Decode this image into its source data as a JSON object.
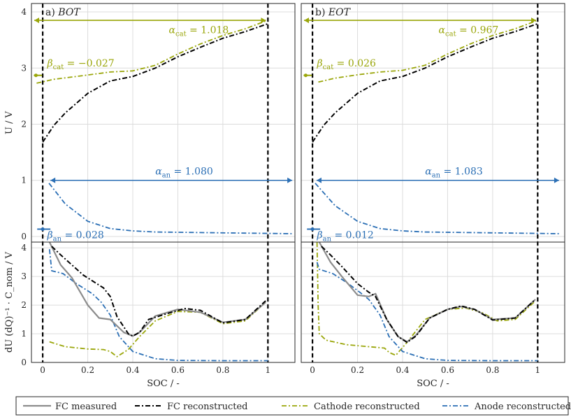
{
  "chart_data": {
    "type": "line",
    "colors": {
      "measured": "#8c8c8c",
      "fc": "#000000",
      "cathode": "#9aa60a",
      "anode": "#2b6fb5",
      "arrow_cat": "#9aa60a",
      "arrow_an": "#2b6fb5"
    },
    "x_axis": {
      "label": "SOC / -",
      "range": [
        -0.05,
        1.12
      ],
      "ticks": [
        "0",
        "0.2",
        "0.4",
        "0.6",
        "0.8",
        "1"
      ],
      "tick_values": [
        0,
        0.2,
        0.4,
        0.6,
        0.8,
        1.0
      ]
    },
    "top_y_axis": {
      "label": "U / V",
      "range": [
        -0.1,
        4.15
      ],
      "ticks": [
        "0",
        "1",
        "2",
        "3",
        "4"
      ],
      "tick_values": [
        0,
        1,
        2,
        3,
        4
      ]
    },
    "bottom_y_axis": {
      "label": "dU (dQ)⁻¹ · C_nom / V",
      "range": [
        0,
        4.2
      ],
      "ticks": [
        "0",
        "1",
        "2",
        "3",
        "4"
      ],
      "tick_values": [
        0,
        1,
        2,
        3,
        4
      ]
    },
    "legend": {
      "position": "bottom",
      "entries": [
        {
          "key": "measured",
          "label": "FC measured"
        },
        {
          "key": "fc",
          "label": "FC reconstructed"
        },
        {
          "key": "cathode",
          "label": "Cathode reconstructed"
        },
        {
          "key": "anode",
          "label": "Anode reconstructed"
        }
      ]
    },
    "panels": [
      {
        "id": "bot",
        "title_prefix": "a)",
        "title": "BOT",
        "alpha_cat": "α_cat = 1.018",
        "beta_cat": "β_cat = −0.027",
        "alpha_an": "α_an = 1.080",
        "beta_an": "β_an = 0.028",
        "cat_arrow": [
          -0.027,
          0.991
        ],
        "an_arrow": [
          0.028,
          1.108
        ],
        "voltage": {
          "fc": [
            [
              0,
              1.68
            ],
            [
              0.05,
              1.98
            ],
            [
              0.1,
              2.2
            ],
            [
              0.2,
              2.55
            ],
            [
              0.3,
              2.77
            ],
            [
              0.4,
              2.85
            ],
            [
              0.5,
              3.0
            ],
            [
              0.6,
              3.2
            ],
            [
              0.7,
              3.37
            ],
            [
              0.8,
              3.53
            ],
            [
              0.9,
              3.65
            ],
            [
              1.0,
              3.79
            ]
          ],
          "cathode": [
            [
              -0.027,
              2.73
            ],
            [
              0.05,
              2.8
            ],
            [
              0.15,
              2.85
            ],
            [
              0.3,
              2.93
            ],
            [
              0.4,
              2.95
            ],
            [
              0.5,
              3.05
            ],
            [
              0.6,
              3.25
            ],
            [
              0.7,
              3.43
            ],
            [
              0.8,
              3.58
            ],
            [
              0.9,
              3.7
            ],
            [
              0.991,
              3.84
            ]
          ],
          "anode": [
            [
              0.028,
              0.95
            ],
            [
              0.1,
              0.58
            ],
            [
              0.2,
              0.27
            ],
            [
              0.3,
              0.14
            ],
            [
              0.4,
              0.1
            ],
            [
              0.5,
              0.08
            ],
            [
              0.7,
              0.07
            ],
            [
              0.9,
              0.06
            ],
            [
              1.108,
              0.05
            ]
          ]
        },
        "dvdq": {
          "measured": [
            [
              0.03,
              4.2
            ],
            [
              0.08,
              3.4
            ],
            [
              0.13,
              2.95
            ],
            [
              0.2,
              2.0
            ],
            [
              0.25,
              1.55
            ],
            [
              0.3,
              1.5
            ],
            [
              0.36,
              1.05
            ],
            [
              0.4,
              0.92
            ],
            [
              0.43,
              1.05
            ],
            [
              0.5,
              1.62
            ],
            [
              0.6,
              1.85
            ],
            [
              0.7,
              1.75
            ],
            [
              0.8,
              1.4
            ],
            [
              0.9,
              1.5
            ],
            [
              0.99,
              2.1
            ]
          ],
          "fc": [
            [
              0.04,
              4.05
            ],
            [
              0.08,
              3.75
            ],
            [
              0.13,
              3.4
            ],
            [
              0.18,
              3.05
            ],
            [
              0.24,
              2.75
            ],
            [
              0.27,
              2.6
            ],
            [
              0.3,
              2.3
            ],
            [
              0.33,
              1.6
            ],
            [
              0.38,
              1.0
            ],
            [
              0.4,
              0.92
            ],
            [
              0.43,
              1.05
            ],
            [
              0.47,
              1.5
            ],
            [
              0.55,
              1.7
            ],
            [
              0.63,
              1.88
            ],
            [
              0.7,
              1.82
            ],
            [
              0.8,
              1.38
            ],
            [
              0.9,
              1.5
            ],
            [
              0.99,
              2.15
            ]
          ],
          "cathode": [
            [
              0.03,
              0.72
            ],
            [
              0.1,
              0.55
            ],
            [
              0.2,
              0.47
            ],
            [
              0.27,
              0.45
            ],
            [
              0.3,
              0.38
            ],
            [
              0.33,
              0.2
            ],
            [
              0.38,
              0.45
            ],
            [
              0.43,
              0.9
            ],
            [
              0.5,
              1.45
            ],
            [
              0.6,
              1.78
            ],
            [
              0.7,
              1.75
            ],
            [
              0.8,
              1.35
            ],
            [
              0.9,
              1.45
            ],
            [
              0.99,
              2.1
            ]
          ],
          "anode": [
            [
              0.03,
              3.95
            ],
            [
              0.04,
              3.2
            ],
            [
              0.09,
              3.1
            ],
            [
              0.15,
              2.75
            ],
            [
              0.22,
              2.4
            ],
            [
              0.26,
              2.1
            ],
            [
              0.3,
              1.65
            ],
            [
              0.34,
              0.9
            ],
            [
              0.4,
              0.38
            ],
            [
              0.5,
              0.13
            ],
            [
              0.6,
              0.07
            ],
            [
              0.8,
              0.06
            ],
            [
              1.0,
              0.06
            ]
          ]
        }
      },
      {
        "id": "eot",
        "title_prefix": "b)",
        "title": "EOT",
        "alpha_cat": "α_cat = 0.967",
        "beta_cat": "β_cat = 0.026",
        "alpha_an": "α_an = 1.083",
        "beta_an": "β_an = 0.012",
        "cat_arrow": [
          0.026,
          0.993
        ],
        "an_arrow": [
          0.012,
          1.095
        ],
        "voltage": {
          "fc": [
            [
              0,
              1.68
            ],
            [
              0.05,
              1.98
            ],
            [
              0.1,
              2.2
            ],
            [
              0.2,
              2.55
            ],
            [
              0.3,
              2.77
            ],
            [
              0.4,
              2.85
            ],
            [
              0.5,
              3.0
            ],
            [
              0.6,
              3.2
            ],
            [
              0.7,
              3.37
            ],
            [
              0.8,
              3.53
            ],
            [
              0.9,
              3.65
            ],
            [
              1.0,
              3.79
            ]
          ],
          "cathode": [
            [
              0.026,
              2.75
            ],
            [
              0.1,
              2.82
            ],
            [
              0.2,
              2.88
            ],
            [
              0.3,
              2.93
            ],
            [
              0.4,
              2.96
            ],
            [
              0.5,
              3.05
            ],
            [
              0.6,
              3.25
            ],
            [
              0.7,
              3.43
            ],
            [
              0.8,
              3.58
            ],
            [
              0.9,
              3.7
            ],
            [
              0.993,
              3.84
            ]
          ],
          "anode": [
            [
              0.012,
              0.95
            ],
            [
              0.1,
              0.55
            ],
            [
              0.2,
              0.27
            ],
            [
              0.3,
              0.14
            ],
            [
              0.4,
              0.1
            ],
            [
              0.5,
              0.08
            ],
            [
              0.7,
              0.07
            ],
            [
              0.9,
              0.06
            ],
            [
              1.095,
              0.05
            ]
          ]
        },
        "dvdq": {
          "measured": [
            [
              0.03,
              4.2
            ],
            [
              0.08,
              3.5
            ],
            [
              0.13,
              3.0
            ],
            [
              0.2,
              2.35
            ],
            [
              0.25,
              2.3
            ],
            [
              0.28,
              2.4
            ],
            [
              0.33,
              1.5
            ],
            [
              0.38,
              0.9
            ],
            [
              0.42,
              0.72
            ],
            [
              0.46,
              0.95
            ],
            [
              0.52,
              1.55
            ],
            [
              0.6,
              1.85
            ],
            [
              0.66,
              1.95
            ],
            [
              0.72,
              1.85
            ],
            [
              0.8,
              1.5
            ],
            [
              0.9,
              1.55
            ],
            [
              0.99,
              2.2
            ]
          ],
          "fc": [
            [
              0.04,
              4.05
            ],
            [
              0.08,
              3.75
            ],
            [
              0.13,
              3.35
            ],
            [
              0.2,
              2.75
            ],
            [
              0.25,
              2.45
            ],
            [
              0.28,
              2.3
            ],
            [
              0.33,
              1.5
            ],
            [
              0.38,
              0.9
            ],
            [
              0.42,
              0.7
            ],
            [
              0.46,
              0.92
            ],
            [
              0.52,
              1.55
            ],
            [
              0.6,
              1.85
            ],
            [
              0.66,
              1.97
            ],
            [
              0.72,
              1.85
            ],
            [
              0.8,
              1.48
            ],
            [
              0.9,
              1.55
            ],
            [
              0.99,
              2.2
            ]
          ],
          "cathode": [
            [
              0.02,
              4.2
            ],
            [
              0.025,
              2.0
            ],
            [
              0.03,
              1.0
            ],
            [
              0.06,
              0.78
            ],
            [
              0.15,
              0.62
            ],
            [
              0.25,
              0.55
            ],
            [
              0.32,
              0.5
            ],
            [
              0.34,
              0.35
            ],
            [
              0.37,
              0.25
            ],
            [
              0.42,
              0.7
            ],
            [
              0.5,
              1.5
            ],
            [
              0.6,
              1.85
            ],
            [
              0.68,
              1.9
            ],
            [
              0.75,
              1.75
            ],
            [
              0.82,
              1.45
            ],
            [
              0.9,
              1.5
            ],
            [
              0.99,
              2.15
            ]
          ],
          "anode": [
            [
              0.02,
              3.5
            ],
            [
              0.03,
              3.25
            ],
            [
              0.09,
              3.1
            ],
            [
              0.15,
              2.8
            ],
            [
              0.21,
              2.45
            ],
            [
              0.25,
              2.2
            ],
            [
              0.3,
              1.65
            ],
            [
              0.34,
              0.9
            ],
            [
              0.4,
              0.38
            ],
            [
              0.5,
              0.13
            ],
            [
              0.6,
              0.07
            ],
            [
              0.8,
              0.06
            ],
            [
              1.0,
              0.06
            ]
          ]
        }
      }
    ]
  }
}
